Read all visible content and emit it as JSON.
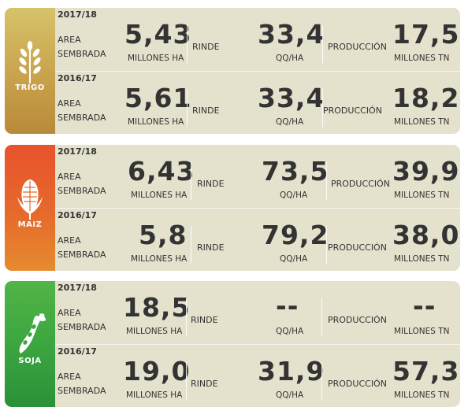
{
  "crops": [
    {
      "name": "TRIGO",
      "rows": [
        {
          "year": "2017/18",
          "area_line1": "AREA",
          "area_line2": "SEMBRADA",
          "area_value": "5,43",
          "area_unit": "MILLONES HA",
          "rinde_label": "RINDE",
          "rinde_value": "33,4",
          "rinde_unit": "QQ/HA",
          "prod_label": "PRODUCCIÓN",
          "prod_value": "17,5",
          "prod_unit": "MILLONES TN"
        },
        {
          "year": "2016/17",
          "area_line1": "AREA",
          "area_line2": "SEMBRADA",
          "area_value": "5,61",
          "area_unit": "MILLONES HA",
          "rinde_label": "RINDE",
          "rinde_value": "33,4",
          "rinde_unit": "QQ/HA",
          "prod_label": "PRODUCCIÓN",
          "prod_value": "18,2",
          "prod_unit": "MILLONES TN"
        }
      ]
    },
    {
      "name": "MAIZ",
      "rows": [
        {
          "year": "2017/18",
          "area_line1": "AREA",
          "area_line2": "SEMBRADA",
          "area_value": "6,43",
          "area_unit": "MILLONES HA",
          "rinde_label": "RINDE",
          "rinde_value": "73,5",
          "rinde_unit": "QQ/HA",
          "prod_label": "PRODUCCIÓN",
          "prod_value": "39,9",
          "prod_unit": "MILLONES TN"
        },
        {
          "year": "2016/17",
          "area_line1": "AREA",
          "area_line2": "SEMBRADA",
          "area_value": "5,8",
          "area_unit": "MILLONES HA",
          "rinde_label": "RINDE",
          "rinde_value": "79,2",
          "rinde_unit": "QQ/HA",
          "prod_label": "PRODUCCIÓN",
          "prod_value": "38,0",
          "prod_unit": "MILLONES TN"
        }
      ]
    },
    {
      "name": "SOJA",
      "rows": [
        {
          "year": "2017/18",
          "area_line1": "AREA",
          "area_line2": "SEMBRADA",
          "area_value": "18,5",
          "area_unit": "MILLONES HA",
          "rinde_label": "RINDE",
          "rinde_value": "--",
          "rinde_unit": "QQ/HA",
          "prod_label": "PRODUCCIÓN",
          "prod_value": "--",
          "prod_unit": "MILLONES TN"
        },
        {
          "year": "2016/17",
          "area_line1": "AREA",
          "area_line2": "SEMBRADA",
          "area_value": "19,0",
          "area_unit": "MILLONES HA",
          "rinde_label": "RINDE",
          "rinde_value": "31,9",
          "rinde_unit": "QQ/HA",
          "prod_label": "PRODUCCIÓN",
          "prod_value": "57,3",
          "prod_unit": "MILLONES TN"
        }
      ]
    }
  ],
  "icons": [
    "wheat-icon",
    "corn-icon",
    "soybean-icon"
  ],
  "colors": {
    "trigo": "#c8a24c",
    "maiz": "#e66a2c",
    "soja": "#3aa43f",
    "card_bg": "#e4e1cd",
    "text": "#333333"
  }
}
